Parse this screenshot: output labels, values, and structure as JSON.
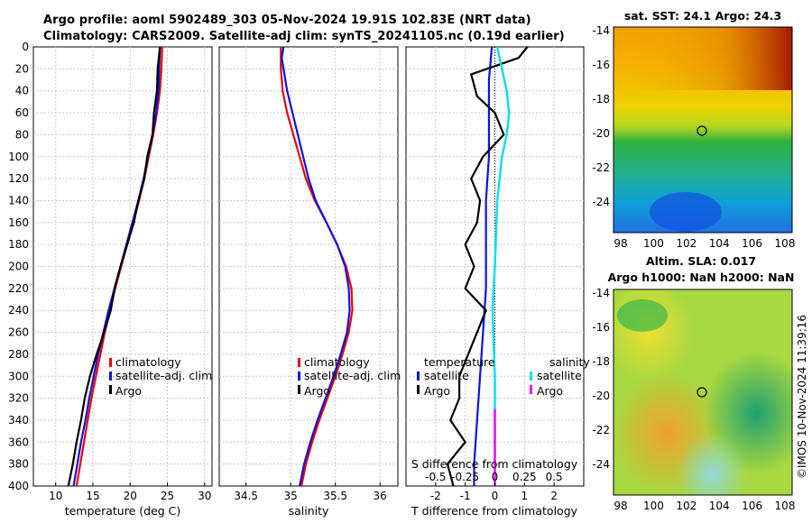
{
  "header": {
    "line1": "Argo profile: aoml 5902489_303 05-Nov-2024 19.91S 102.83E (NRT data)",
    "line2": "Climatology: CARS2009. Satellite-adj clim: synTS_20241105.nc (0.19d earlier)"
  },
  "colors": {
    "climatology": "#ee0000",
    "satellite": "#1010e0",
    "argo": "#000000",
    "sat_salinity": "#00e0f0",
    "argo_salinity": "#ff00ff",
    "grid": "#c8c8c8"
  },
  "depth_axis": {
    "ticks": [
      0,
      20,
      40,
      60,
      80,
      100,
      120,
      140,
      160,
      180,
      200,
      220,
      240,
      260,
      280,
      300,
      320,
      340,
      360,
      380,
      400
    ],
    "range": [
      0,
      400
    ]
  },
  "chart_data": [
    {
      "type": "line",
      "id": "temperature",
      "xlabel": "temperature (deg C)",
      "xlim": [
        7,
        31
      ],
      "xticks": [
        10,
        15,
        20,
        25,
        30
      ],
      "legend": [
        "climatology",
        "satellite-adj. clim",
        "Argo"
      ],
      "series": [
        {
          "name": "climatology",
          "color_key": "climatology",
          "points": [
            [
              24.3,
              0
            ],
            [
              24.2,
              20
            ],
            [
              24.0,
              40
            ],
            [
              23.6,
              60
            ],
            [
              23.1,
              80
            ],
            [
              22.5,
              100
            ],
            [
              21.9,
              120
            ],
            [
              21.2,
              140
            ],
            [
              20.4,
              160
            ],
            [
              19.6,
              180
            ],
            [
              18.8,
              200
            ],
            [
              18.0,
              220
            ],
            [
              17.3,
              240
            ],
            [
              16.6,
              260
            ],
            [
              16.0,
              280
            ],
            [
              15.4,
              300
            ],
            [
              14.8,
              320
            ],
            [
              14.3,
              340
            ],
            [
              13.8,
              360
            ],
            [
              13.3,
              380
            ],
            [
              12.8,
              400
            ]
          ]
        },
        {
          "name": "satellite-adj. clim",
          "color_key": "satellite",
          "points": [
            [
              24.0,
              0
            ],
            [
              23.9,
              20
            ],
            [
              23.8,
              40
            ],
            [
              23.5,
              60
            ],
            [
              23.0,
              80
            ],
            [
              22.4,
              100
            ],
            [
              21.8,
              120
            ],
            [
              21.1,
              140
            ],
            [
              20.3,
              160
            ],
            [
              19.5,
              180
            ],
            [
              18.7,
              200
            ],
            [
              17.9,
              220
            ],
            [
              17.1,
              240
            ],
            [
              16.4,
              260
            ],
            [
              15.7,
              280
            ],
            [
              15.1,
              300
            ],
            [
              14.5,
              320
            ],
            [
              14.0,
              340
            ],
            [
              13.4,
              360
            ],
            [
              12.9,
              380
            ],
            [
              12.4,
              400
            ]
          ]
        },
        {
          "name": "Argo",
          "color_key": "argo",
          "points": [
            [
              24.0,
              0
            ],
            [
              23.7,
              20
            ],
            [
              23.6,
              40
            ],
            [
              23.2,
              60
            ],
            [
              23.0,
              80
            ],
            [
              22.3,
              100
            ],
            [
              21.9,
              120
            ],
            [
              21.1,
              140
            ],
            [
              20.5,
              160
            ],
            [
              19.6,
              180
            ],
            [
              18.7,
              200
            ],
            [
              17.9,
              220
            ],
            [
              17.4,
              240
            ],
            [
              16.5,
              260
            ],
            [
              15.5,
              280
            ],
            [
              14.6,
              300
            ],
            [
              13.9,
              320
            ],
            [
              13.4,
              340
            ],
            [
              12.8,
              360
            ],
            [
              12.3,
              380
            ],
            [
              11.7,
              400
            ]
          ]
        }
      ]
    },
    {
      "type": "line",
      "id": "salinity",
      "xlabel": "salinity",
      "xlim": [
        34.2,
        36.2
      ],
      "xticks": [
        34.5,
        35,
        35.5,
        36
      ],
      "legend": [
        "climatology",
        "satellite-adj. clim",
        "Argo"
      ],
      "series": [
        {
          "name": "climatology",
          "color_key": "climatology",
          "points": [
            [
              34.89,
              0
            ],
            [
              34.89,
              20
            ],
            [
              34.91,
              40
            ],
            [
              34.96,
              60
            ],
            [
              35.03,
              80
            ],
            [
              35.1,
              100
            ],
            [
              35.17,
              120
            ],
            [
              35.27,
              140
            ],
            [
              35.4,
              160
            ],
            [
              35.52,
              180
            ],
            [
              35.62,
              200
            ],
            [
              35.68,
              220
            ],
            [
              35.69,
              240
            ],
            [
              35.65,
              260
            ],
            [
              35.58,
              280
            ],
            [
              35.5,
              300
            ],
            [
              35.41,
              320
            ],
            [
              35.32,
              340
            ],
            [
              35.24,
              360
            ],
            [
              35.17,
              380
            ],
            [
              35.12,
              400
            ]
          ]
        },
        {
          "name": "satellite-adj. clim",
          "color_key": "satellite",
          "points": [
            [
              34.92,
              0
            ],
            [
              34.9,
              10
            ],
            [
              34.92,
              20
            ],
            [
              34.96,
              40
            ],
            [
              35.02,
              60
            ],
            [
              35.08,
              80
            ],
            [
              35.14,
              100
            ],
            [
              35.2,
              120
            ],
            [
              35.28,
              140
            ],
            [
              35.4,
              160
            ],
            [
              35.52,
              180
            ],
            [
              35.61,
              200
            ],
            [
              35.65,
              220
            ],
            [
              35.66,
              240
            ],
            [
              35.63,
              260
            ],
            [
              35.56,
              280
            ],
            [
              35.48,
              300
            ],
            [
              35.39,
              320
            ],
            [
              35.3,
              340
            ],
            [
              35.22,
              360
            ],
            [
              35.15,
              380
            ],
            [
              35.1,
              400
            ]
          ]
        }
      ]
    },
    {
      "type": "line",
      "id": "difference",
      "xlabel": "T difference from climatology",
      "xlabel_top": "S difference from climatology",
      "xlim": [
        -3,
        3
      ],
      "xticks": [
        -2,
        -1,
        0,
        1,
        2
      ],
      "sticks": [
        "-0.5",
        "-0.25",
        "0",
        "0.25",
        "0.5"
      ],
      "sticks_values": [
        -0.5,
        -0.25,
        0,
        0.25,
        0.5
      ],
      "slim": [
        -0.75,
        0.75
      ],
      "legend_left_title": "temperature",
      "legend_right_title": "salinity",
      "legend_left": [
        "satellite",
        "Argo"
      ],
      "legend_right": [
        "satellite",
        "Argo"
      ],
      "series": [
        {
          "name": "T satellite",
          "color_key": "satellite",
          "axis": "T",
          "points": [
            [
              -0.1,
              0
            ],
            [
              -0.2,
              30
            ],
            [
              -0.2,
              60
            ],
            [
              -0.2,
              100
            ],
            [
              -0.3,
              140
            ],
            [
              -0.3,
              180
            ],
            [
              -0.3,
              220
            ],
            [
              -0.4,
              260
            ],
            [
              -0.5,
              300
            ],
            [
              -0.6,
              340
            ],
            [
              -0.7,
              380
            ],
            [
              -0.7,
              400
            ]
          ]
        },
        {
          "name": "T Argo",
          "color_key": "argo",
          "axis": "T",
          "points": [
            [
              1.1,
              0
            ],
            [
              0.8,
              10
            ],
            [
              -0.8,
              25
            ],
            [
              -0.6,
              45
            ],
            [
              0.0,
              60
            ],
            [
              0.3,
              80
            ],
            [
              -0.4,
              100
            ],
            [
              -0.8,
              120
            ],
            [
              -0.5,
              140
            ],
            [
              -0.6,
              160
            ],
            [
              -1.0,
              180
            ],
            [
              -0.7,
              200
            ],
            [
              -1.0,
              220
            ],
            [
              -0.3,
              240
            ],
            [
              -0.6,
              260
            ],
            [
              -0.9,
              280
            ],
            [
              -1.2,
              300
            ],
            [
              -1.2,
              320
            ],
            [
              -1.5,
              340
            ],
            [
              -1.0,
              360
            ],
            [
              -1.6,
              380
            ],
            [
              -1.4,
              400
            ]
          ]
        },
        {
          "name": "S satellite",
          "color_key": "sat_salinity",
          "axis": "S",
          "points": [
            [
              0.02,
              0
            ],
            [
              0.06,
              20
            ],
            [
              0.1,
              40
            ],
            [
              0.12,
              60
            ],
            [
              0.1,
              80
            ],
            [
              0.06,
              100
            ],
            [
              0.04,
              120
            ],
            [
              0.02,
              140
            ],
            [
              0.0,
              200
            ],
            [
              -0.02,
              240
            ],
            [
              0.0,
              300
            ],
            [
              0.0,
              400
            ]
          ]
        },
        {
          "name": "S Argo",
          "color_key": "argo_salinity",
          "axis": "S",
          "points": [
            [
              0.0,
              330
            ],
            [
              0.0,
              400
            ]
          ]
        }
      ]
    }
  ],
  "maps": {
    "sst": {
      "title": "sat. SST: 24.1 Argo: 24.3",
      "xticks": [
        "98",
        "100",
        "102",
        "104",
        "106",
        "108"
      ],
      "yticks": [
        "-14",
        "-16",
        "-18",
        "-20",
        "-22",
        "-24"
      ]
    },
    "sla": {
      "title1": "Altim. SLA: 0.017",
      "title2": "Argo h1000: NaN h2000: NaN",
      "xticks": [
        "98",
        "100",
        "102",
        "104",
        "106",
        "108"
      ],
      "yticks": [
        "-14",
        "-16",
        "-18",
        "-20",
        "-22",
        "-24"
      ]
    }
  },
  "footer": {
    "stamp": "©IMOS 10-Nov-2024 11:39:16"
  }
}
